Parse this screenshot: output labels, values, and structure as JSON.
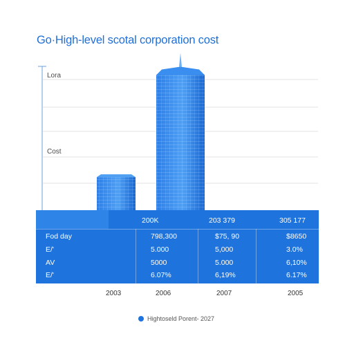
{
  "chart_data": {
    "type": "bar",
    "title": "Go·High-level scotal corporation cost",
    "y_tick_labels": [
      "Lora",
      "Cost"
    ],
    "grid": true,
    "categories": [
      "2003",
      "2006",
      "2007",
      "2005"
    ],
    "series": [
      {
        "values": [
          46,
          188,
          null,
          null
        ],
        "color": "#1f73dc"
      }
    ],
    "ylim": [
      0,
      200
    ],
    "table": {
      "header": [
        "",
        "200K",
        "203 379",
        "305 177"
      ],
      "rows": [
        {
          "label": "Fod day",
          "cells": [
            "798,300",
            "$75, 90",
            "$8650"
          ]
        },
        {
          "label": "E/'",
          "cells": [
            "5.000",
            "5,000",
            "3.0%"
          ]
        },
        {
          "label": "AV",
          "cells": [
            "5000",
            "5.000",
            "6,10%"
          ]
        },
        {
          "label": "E/'",
          "cells": [
            "6.07%",
            "6,19%",
            "6.17%"
          ]
        }
      ]
    },
    "legend": {
      "label": "Hightoseld Porent- 2027",
      "position": "bottom"
    }
  }
}
